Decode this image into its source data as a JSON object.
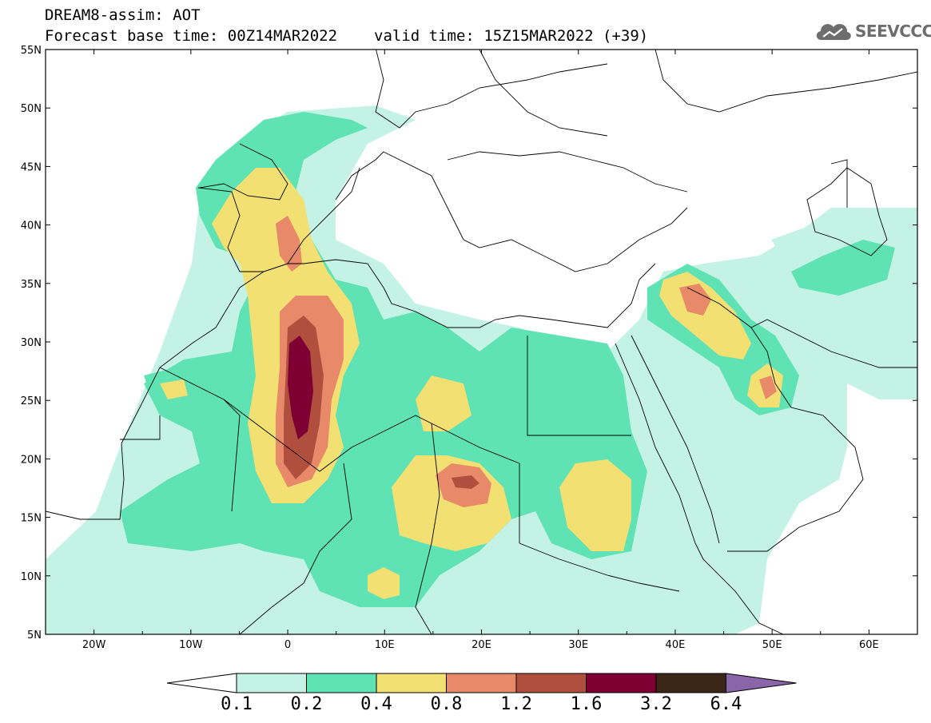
{
  "header": {
    "line1": "DREAM8-assim: AOT",
    "base_time": "Forecast base time: 00Z14MAR2022",
    "valid_time": "valid time: 15Z15MAR2022 (+39)"
  },
  "logo": {
    "text": "SEEVCCC",
    "icon": "cloud-icon"
  },
  "map": {
    "lon_range": [
      -25,
      65
    ],
    "lat_range": [
      5,
      55
    ],
    "lat_ticks": [
      "5N",
      "10N",
      "15N",
      "20N",
      "25N",
      "30N",
      "35N",
      "40N",
      "45N",
      "50N",
      "55N"
    ],
    "lon_ticks": [
      "20W",
      "10W",
      "0",
      "10E",
      "20E",
      "30E",
      "40E",
      "50E",
      "60E"
    ]
  },
  "colorbar": {
    "levels": [
      "0.1",
      "0.2",
      "0.4",
      "0.8",
      "1.2",
      "1.6",
      "3.2",
      "6.4"
    ],
    "colors": [
      "#ffffff",
      "#c4f3e6",
      "#5fe2b4",
      "#f2e072",
      "#e8896a",
      "#b04f3e",
      "#7e0032",
      "#3b2617",
      "#8a66a8"
    ]
  }
}
